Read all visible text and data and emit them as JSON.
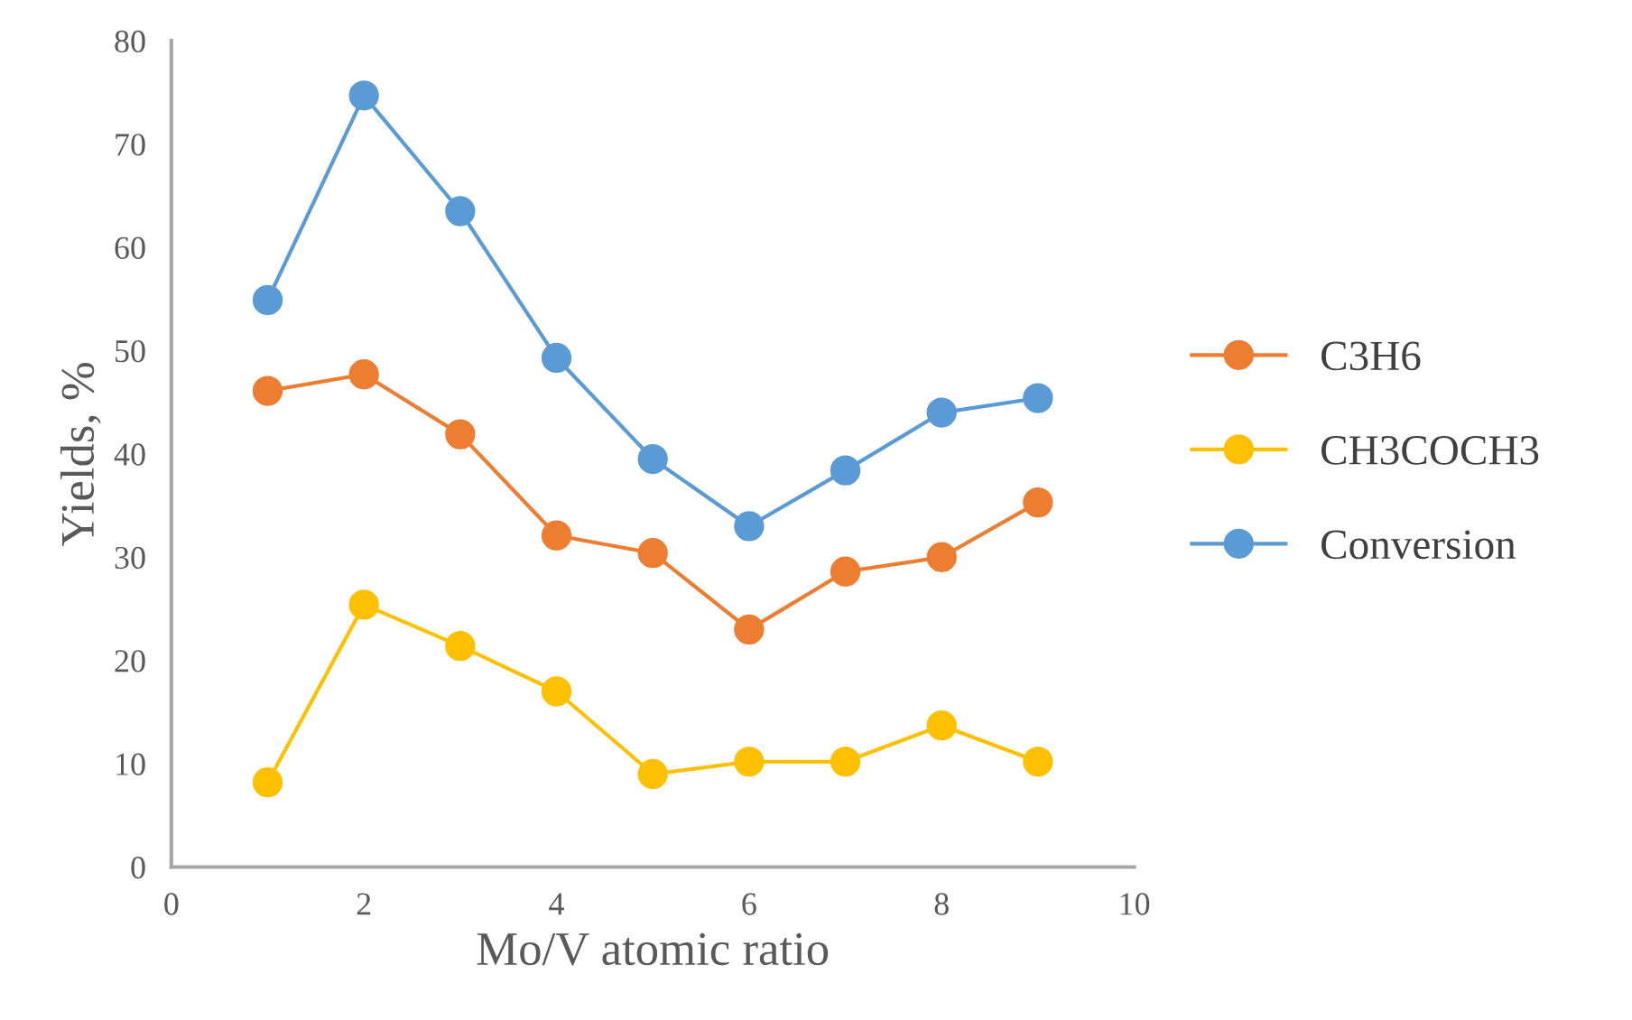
{
  "chart_data": {
    "type": "line",
    "xlabel": "Mo/V atomic ratio",
    "ylabel": "Yields, %",
    "x": [
      1,
      2,
      3,
      4,
      5,
      6,
      7,
      8,
      9
    ],
    "series": [
      {
        "name": "C3H6",
        "color": "#ed7d31",
        "values": [
          46.1,
          47.7,
          41.9,
          32.1,
          30.4,
          23,
          28.6,
          30,
          35.3
        ]
      },
      {
        "name": "CH3COCH3",
        "color": "#ffc000",
        "values": [
          8.2,
          25.4,
          21.4,
          17,
          9,
          10.2,
          10.2,
          13.7,
          10.2
        ]
      },
      {
        "name": "Conversion",
        "color": "#5b9bd5",
        "values": [
          54.9,
          74.7,
          63.5,
          49.3,
          39.5,
          33,
          38.4,
          44,
          45.4
        ]
      }
    ],
    "xlim": [
      0,
      10
    ],
    "xticks": [
      0,
      2,
      4,
      6,
      8,
      10
    ],
    "ylim": [
      0,
      80
    ],
    "yticks": [
      0,
      10,
      20,
      30,
      40,
      50,
      60,
      70,
      80
    ],
    "grid": false,
    "legend": "right",
    "marker": "circle",
    "line_style": "solid"
  }
}
